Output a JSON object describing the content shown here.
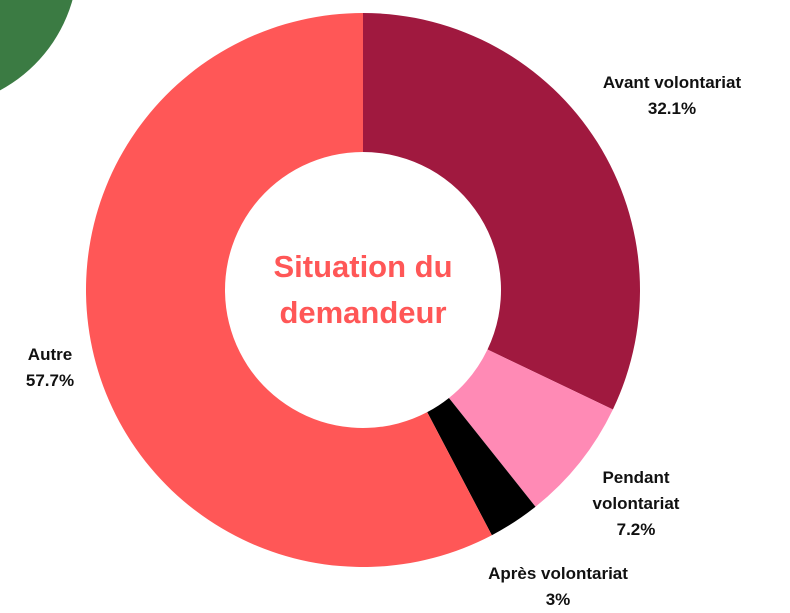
{
  "chart_data": {
    "type": "donut",
    "title": "Situation du demandeur",
    "categories": [
      "Avant volontariat",
      "Pendant volontariat",
      "Après volontariat",
      "Autre"
    ],
    "values": [
      32.1,
      7.2,
      3,
      57.7
    ],
    "value_labels": [
      "32.1%",
      "7.2%",
      "3%",
      "57.7%"
    ],
    "colors": [
      "#a0193f",
      "#ff8ab5",
      "#000000",
      "#ff5757"
    ]
  }
}
